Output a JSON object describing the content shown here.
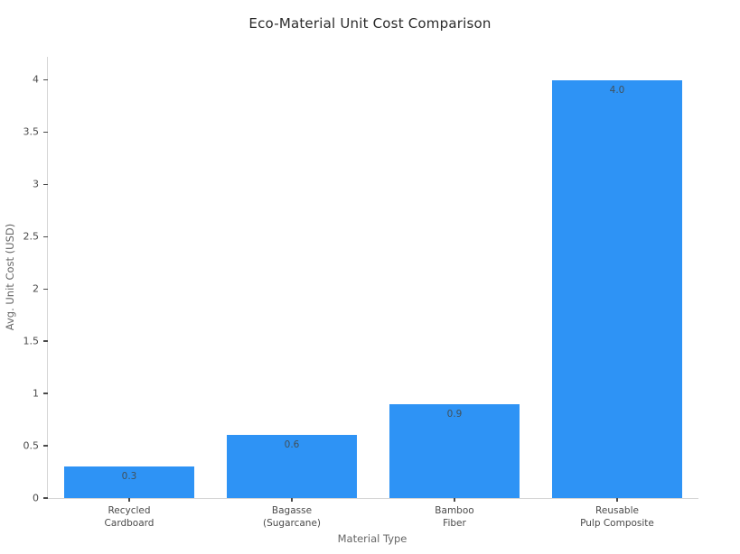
{
  "chart_data": {
    "type": "bar",
    "title": "Eco-Material Unit Cost Comparison",
    "xlabel": "Material Type",
    "ylabel": "Avg. Unit Cost (USD)",
    "categories": [
      [
        "Recycled",
        "Cardboard"
      ],
      [
        "Bagasse",
        "(Sugarcane)"
      ],
      [
        "Bamboo",
        "Fiber"
      ],
      [
        "Reusable",
        "Pulp Composite"
      ]
    ],
    "values": [
      0.3,
      0.6,
      0.9,
      4.0
    ],
    "value_labels": [
      "0.3",
      "0.6",
      "0.9",
      "4.0"
    ],
    "ytick_labels": [
      "0",
      "0.5",
      "1",
      "1.5",
      "2",
      "2.5",
      "3",
      "3.5",
      "4"
    ],
    "yticks": [
      0,
      0.5,
      1,
      1.5,
      2,
      2.5,
      3,
      3.5,
      4
    ],
    "ylim": [
      0,
      4.22
    ],
    "grid": false,
    "legend": "none",
    "bar_color": "#2e93f5",
    "bar_width_fraction": 0.8
  },
  "colors": {
    "bar": "#2e93f5",
    "axis_line": "#d6d6d6",
    "tick_text": "#4a4a4a",
    "axis_title_text": "#666666",
    "title_text": "#2b2b2b",
    "bar_value_text": "#41505a",
    "background": "#ffffff"
  }
}
